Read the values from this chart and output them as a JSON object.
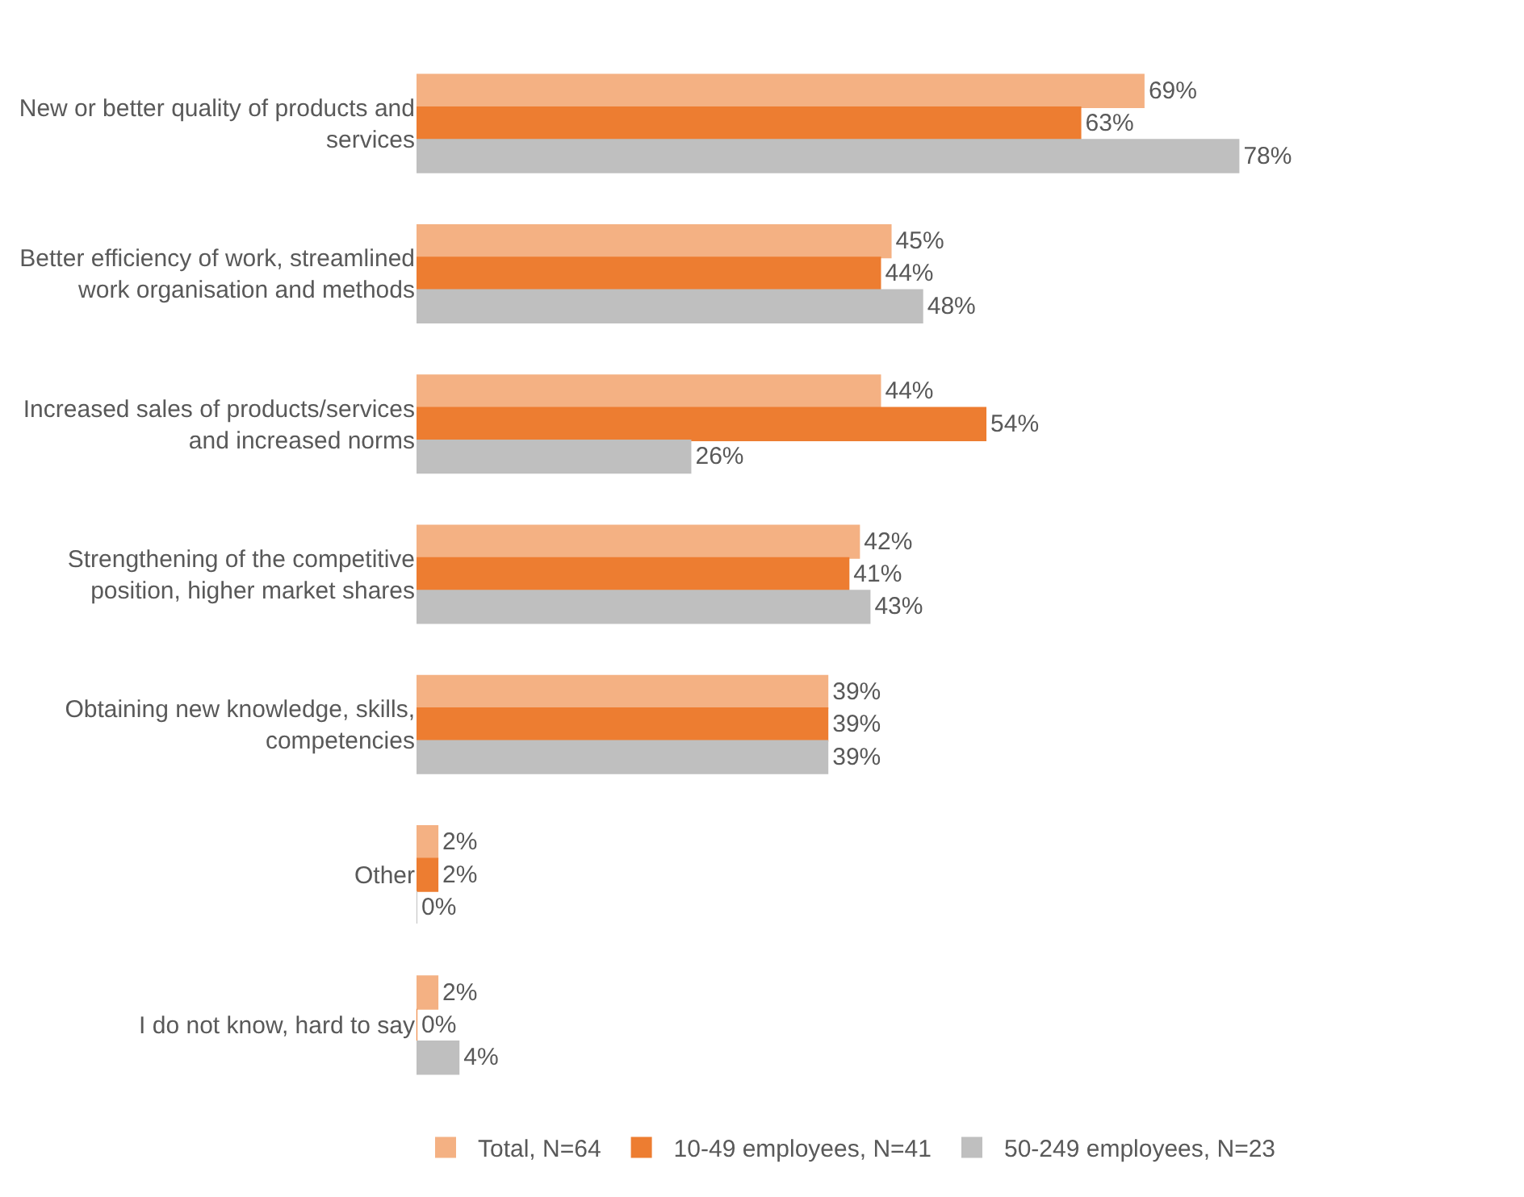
{
  "chart_data": {
    "type": "bar",
    "orientation": "horizontal",
    "categories": [
      "New or better quality of products and services",
      "Better efficiency of work, streamlined work organisation and methods",
      "Increased sales of products/services and increased norms",
      "Strengthening of the competitive position, higher market shares",
      "Obtaining new knowledge, skills, competencies",
      "Other",
      "I do not know, hard to say"
    ],
    "series": [
      {
        "name": "Total, N=64",
        "color": "#f4b183",
        "values": [
          69,
          45,
          44,
          42,
          39,
          2,
          2
        ],
        "value_labels": [
          "69%",
          "45%",
          "44%",
          "42%",
          "39%",
          "2%",
          "2%"
        ]
      },
      {
        "name": "10-49 employees, N=41",
        "color": "#ed7d31",
        "values": [
          63,
          44,
          54,
          41,
          39,
          2,
          0
        ],
        "value_labels": [
          "63%",
          "44%",
          "54%",
          "41%",
          "39%",
          "2%",
          "0%"
        ]
      },
      {
        "name": "50-249 employees, N=23",
        "color": "#bfbfbf",
        "values": [
          78,
          48,
          26,
          43,
          39,
          0,
          4
        ],
        "value_labels": [
          "78%",
          "48%",
          "26%",
          "43%",
          "39%",
          "0%",
          "4%"
        ]
      }
    ],
    "legend": "bottom",
    "grid": false
  }
}
